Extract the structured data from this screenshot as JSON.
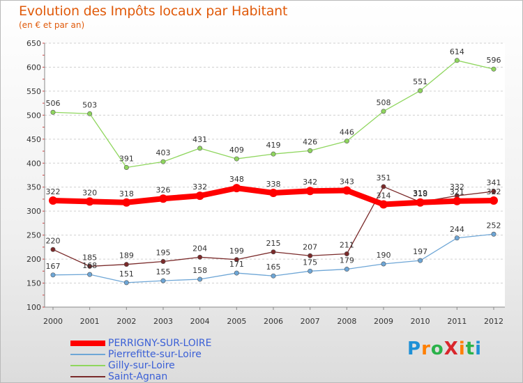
{
  "header": {
    "title": "Evolution des Impôts locaux par Habitant",
    "subtitle": "(en € et par an)"
  },
  "logo": {
    "text": "ProXiti",
    "colors": [
      "#1e90d6",
      "#ff7f00",
      "#2ab24a",
      "#d9262c",
      "#ff7f00",
      "#2ab24a",
      "#1e90d6"
    ]
  },
  "chart_data": {
    "type": "line",
    "x": [
      "2000",
      "2001",
      "2002",
      "2003",
      "2004",
      "2005",
      "2006",
      "2007",
      "2008",
      "2009",
      "2010",
      "2011",
      "2012"
    ],
    "ylim": [
      100,
      650
    ],
    "yticks": [
      "100",
      "150",
      "200",
      "250",
      "300",
      "350",
      "400",
      "450",
      "500",
      "550",
      "600",
      "650"
    ],
    "ytick_values": [
      100,
      150,
      200,
      250,
      300,
      350,
      400,
      450,
      500,
      550,
      600,
      650
    ],
    "grid": "horizontal-dashed",
    "legend_position": "bottom-left",
    "series": [
      {
        "name": "PERRIGNY-SUR-LOIRE",
        "color": "#ff0000",
        "values": [
          322,
          320,
          318,
          326,
          332,
          348,
          338,
          342,
          343,
          314,
          318,
          321,
          322
        ]
      },
      {
        "name": "Pierrefitte-sur-Loire",
        "color": "#6ea6d6",
        "values": [
          167,
          168,
          151,
          155,
          158,
          171,
          165,
          175,
          179,
          190,
          197,
          244,
          252
        ]
      },
      {
        "name": "Gilly-sur-Loire",
        "color": "#8fd65e",
        "values": [
          506,
          503,
          391,
          403,
          431,
          409,
          419,
          426,
          446,
          508,
          551,
          614,
          596
        ]
      },
      {
        "name": "Saint-Agnan",
        "color": "#7a2a2a",
        "values": [
          220,
          185,
          189,
          195,
          204,
          199,
          215,
          207,
          211,
          351,
          319,
          332,
          341
        ]
      }
    ]
  }
}
